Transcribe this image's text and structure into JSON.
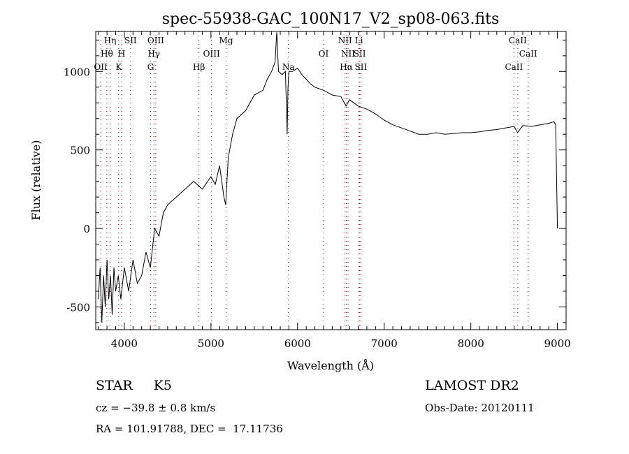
{
  "chart_data": {
    "type": "line",
    "title": "spec-55938-GAC_100N17_V2_sp08-063.fits",
    "xlabel": "Wavelength (Å)",
    "ylabel": "Flux (relative)",
    "xlim": [
      3670,
      9100
    ],
    "ylim": [
      -645,
      1255
    ],
    "xticks": [
      4000,
      5000,
      6000,
      7000,
      8000,
      9000
    ],
    "xtick_labels": [
      "4000",
      "5000",
      "6000",
      "7000",
      "8000",
      "9000"
    ],
    "yticks": [
      -500,
      0,
      500,
      1000
    ],
    "ytick_labels": [
      "-500",
      "0",
      "500",
      "1000"
    ],
    "grid": false,
    "line_color": "#000000",
    "marker_line_color": "#8b0000",
    "series": [
      {
        "name": "flux",
        "x": [
          3700,
          3720,
          3740,
          3760,
          3780,
          3800,
          3820,
          3840,
          3860,
          3880,
          3900,
          3930,
          3960,
          4000,
          4050,
          4100,
          4150,
          4200,
          4250,
          4300,
          4350,
          4400,
          4450,
          4500,
          4600,
          4700,
          4800,
          4900,
          5000,
          5050,
          5100,
          5150,
          5170,
          5200,
          5250,
          5300,
          5400,
          5500,
          5600,
          5650,
          5700,
          5740,
          5760,
          5780,
          5820,
          5860,
          5880,
          5890,
          5900,
          5940,
          6000,
          6050,
          6100,
          6150,
          6200,
          6300,
          6400,
          6500,
          6560,
          6600,
          6700,
          6800,
          6900,
          7000,
          7100,
          7200,
          7300,
          7400,
          7500,
          7600,
          7700,
          7800,
          7900,
          8000,
          8100,
          8200,
          8300,
          8400,
          8500,
          8540,
          8600,
          8700,
          8800,
          8900,
          8960,
          8980,
          9000
        ],
        "y": [
          -450,
          -250,
          -600,
          -300,
          -500,
          -200,
          -450,
          -300,
          -550,
          -250,
          -400,
          -300,
          -450,
          -250,
          -400,
          -200,
          -350,
          -300,
          -150,
          -250,
          0,
          -50,
          100,
          150,
          200,
          250,
          300,
          250,
          330,
          280,
          400,
          200,
          150,
          450,
          600,
          700,
          750,
          850,
          880,
          950,
          1000,
          1060,
          1250,
          1000,
          980,
          1000,
          600,
          900,
          1000,
          1000,
          1020,
          980,
          950,
          920,
          900,
          880,
          850,
          840,
          780,
          820,
          780,
          760,
          730,
          690,
          660,
          640,
          620,
          600,
          600,
          610,
          600,
          605,
          610,
          610,
          615,
          625,
          630,
          640,
          650,
          610,
          655,
          650,
          660,
          670,
          680,
          660,
          0
        ]
      }
    ],
    "spectral_lines": [
      {
        "label": "OII",
        "wavelength": 3727,
        "row": 2
      },
      {
        "label": "Hθ",
        "wavelength": 3798,
        "row": 1
      },
      {
        "label": "Hη",
        "wavelength": 3835,
        "row": 0
      },
      {
        "label": "K",
        "wavelength": 3934,
        "row": 2
      },
      {
        "label": "H",
        "wavelength": 3969,
        "row": 1
      },
      {
        "label": "SII",
        "wavelength": 4072,
        "row": 0
      },
      {
        "label": "G",
        "wavelength": 4304,
        "row": 2
      },
      {
        "label": "Hγ",
        "wavelength": 4341,
        "row": 1
      },
      {
        "label": "OIII",
        "wavelength": 4363,
        "row": 0
      },
      {
        "label": "Hβ",
        "wavelength": 4861,
        "row": 2
      },
      {
        "label": "OIII",
        "wavelength": 5007,
        "row": 1
      },
      {
        "label": "Mg",
        "wavelength": 5175,
        "row": 0
      },
      {
        "label": "Na",
        "wavelength": 5894,
        "row": 2
      },
      {
        "label": "OI",
        "wavelength": 6300,
        "row": 1
      },
      {
        "label": "NII",
        "wavelength": 6548,
        "row": 0
      },
      {
        "label": "Hα",
        "wavelength": 6563,
        "row": 2
      },
      {
        "label": "NII",
        "wavelength": 6583,
        "row": 1
      },
      {
        "label": "Li",
        "wavelength": 6708,
        "row": 0
      },
      {
        "label": "SII",
        "wavelength": 6717,
        "row": 1
      },
      {
        "label": "SII",
        "wavelength": 6731,
        "row": 2
      },
      {
        "label": "CaII",
        "wavelength": 8498,
        "row": 2
      },
      {
        "label": "CaII",
        "wavelength": 8542,
        "row": 0
      },
      {
        "label": "CaII",
        "wavelength": 8662,
        "row": 1
      }
    ]
  },
  "info": {
    "class": "STAR",
    "subclass": "K5",
    "cz": "cz = −39.8 ± 0.8 km/s",
    "radec": "RA = 101.91788, DEC =  17.11736",
    "survey": "LAMOST DR2",
    "obsdate": "Obs-Date: 20120111"
  }
}
